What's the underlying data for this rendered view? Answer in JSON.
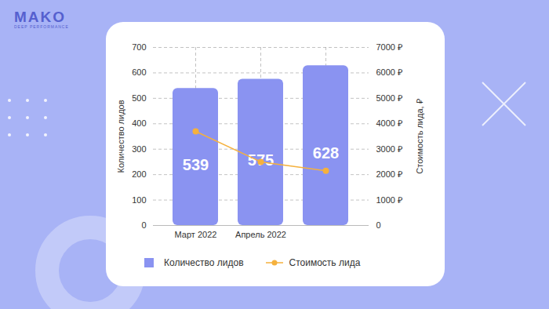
{
  "header": {
    "logo": "MAKO",
    "logo_subtitle": "DEEP PERFORMANCE"
  },
  "chart_data": {
    "type": "bar",
    "categories": [
      "Март 2022",
      "Апрель 2022",
      null
    ],
    "series": [
      {
        "name": "Количество лидов",
        "type": "bar",
        "color": "#8a93f1",
        "values": [
          539,
          575,
          628
        ]
      },
      {
        "name": "Стоимость лида",
        "type": "line",
        "axis": "y2",
        "color": "#f5b13d",
        "marker": "circle",
        "values": [
          3700,
          2500,
          2150
        ]
      }
    ],
    "ylabel": "Количество лидов",
    "y2label": "Стоимость лида, ₽",
    "ylim": [
      0,
      700
    ],
    "yticks": [
      0,
      100,
      200,
      300,
      400,
      500,
      600,
      700
    ],
    "y2lim": [
      0,
      7000
    ],
    "y2ticks": [
      0,
      {
        "value": 1000,
        "label": "1000 ₽"
      },
      {
        "value": 2000,
        "label": "2000 ₽"
      },
      {
        "value": 3000,
        "label": "3000 ₽"
      },
      {
        "value": 4000,
        "label": "4000 ₽"
      },
      {
        "value": 5000,
        "label": "5000 ₽"
      },
      {
        "value": 6000,
        "label": "6000 ₽"
      },
      {
        "value": 7000,
        "label": "7000 ₽"
      }
    ],
    "grid": true,
    "data_labels": true,
    "legend": "bottom"
  }
}
